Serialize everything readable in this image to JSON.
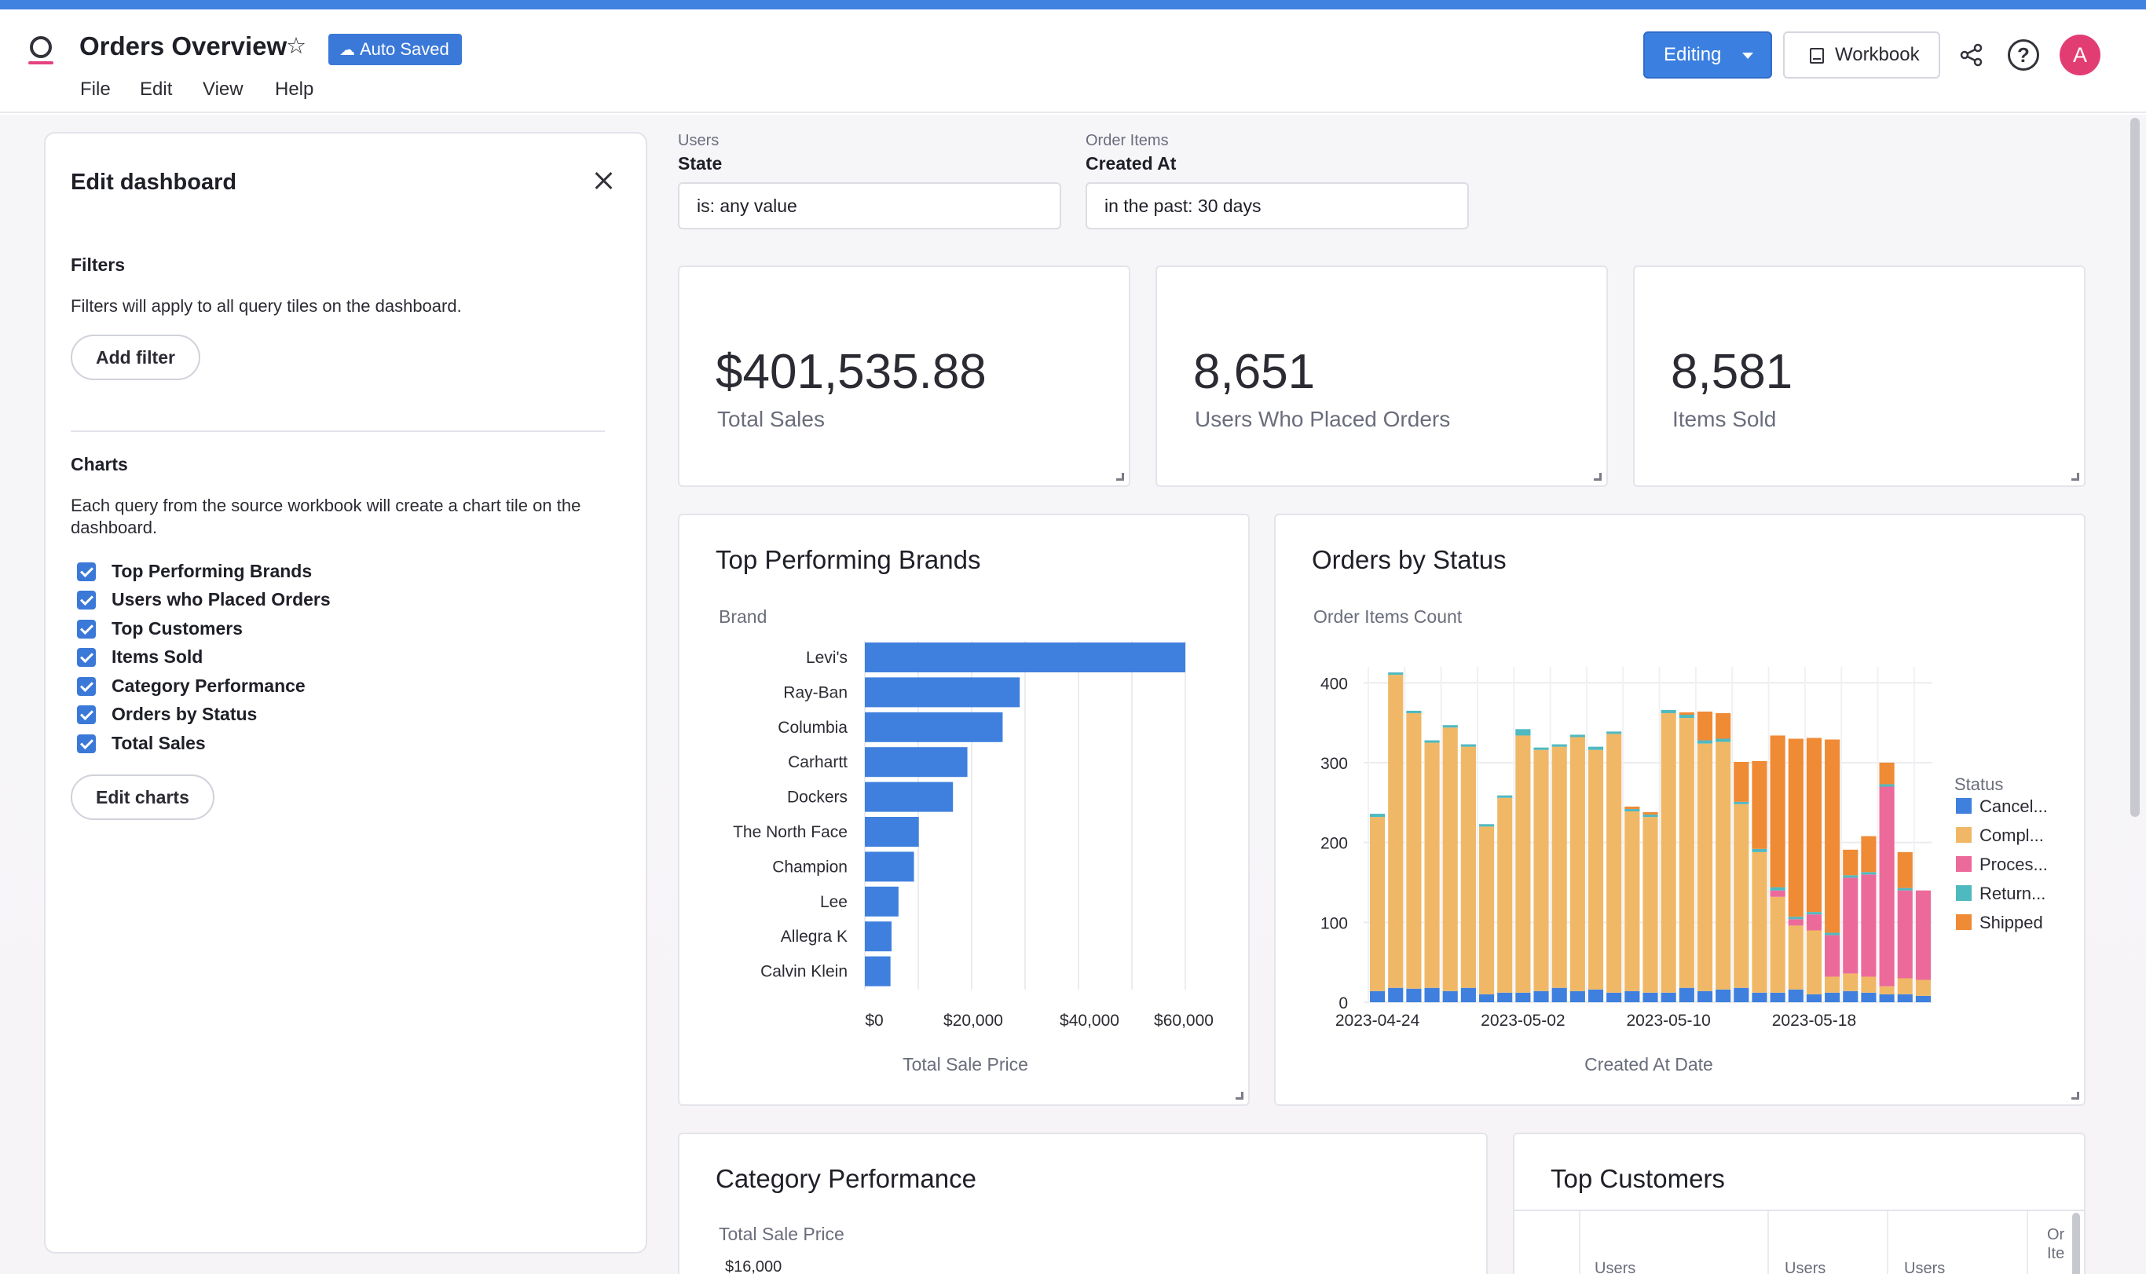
{
  "header": {
    "title": "Orders Overview",
    "auto_saved": "Auto Saved",
    "menu": [
      "File",
      "Edit",
      "View",
      "Help"
    ],
    "editing": "Editing",
    "workbook": "Workbook",
    "help_glyph": "?",
    "avatar_initial": "A",
    "icons": [
      "logo-icon",
      "star-icon",
      "cloud-icon",
      "book-icon",
      "share-icon",
      "help-icon"
    ]
  },
  "panel": {
    "title": "Edit dashboard",
    "filters_heading": "Filters",
    "filters_text": "Filters will apply to all query tiles on the dashboard.",
    "add_filter": "Add filter",
    "charts_heading": "Charts",
    "charts_text": "Each query from the source workbook will create a chart tile on the dashboard.",
    "charts": [
      {
        "label": "Top Performing Brands",
        "checked": true
      },
      {
        "label": "Users who Placed Orders",
        "checked": true
      },
      {
        "label": "Top Customers",
        "checked": true
      },
      {
        "label": "Items Sold",
        "checked": true
      },
      {
        "label": "Category Performance",
        "checked": true
      },
      {
        "label": "Orders by Status",
        "checked": true
      },
      {
        "label": "Total Sales",
        "checked": true
      }
    ],
    "edit_charts": "Edit charts"
  },
  "filters": [
    {
      "source": "Users",
      "name": "State",
      "value": "is: any value"
    },
    {
      "source": "Order Items",
      "name": "Created At",
      "value": "in the past: 30 days"
    }
  ],
  "kpis": [
    {
      "value": "$401,535.88",
      "label": "Total Sales"
    },
    {
      "value": "8,651",
      "label": "Users Who Placed Orders"
    },
    {
      "value": "8,581",
      "label": "Items Sold"
    }
  ],
  "brands_card": {
    "title": "Top Performing Brands",
    "y_title": "Brand",
    "x_title": "Total Sale Price"
  },
  "status_card": {
    "title": "Orders by Status",
    "y_title": "Order Items Count",
    "x_title": "Created At Date",
    "legend_title": "Status"
  },
  "category_card": {
    "title": "Category Performance",
    "y_title": "Total Sale Price",
    "first_tick": "$16,000"
  },
  "customers_card": {
    "title": "Top Customers",
    "headers": [
      "Users",
      "Users",
      "Users",
      "Or Ite"
    ]
  },
  "colors": {
    "accent": "#3b79d8",
    "cancelled": "#3f80de",
    "complete": "#f0b866",
    "processing": "#ec6a9a",
    "returned": "#4fb9c0",
    "shipped": "#ef8a35"
  },
  "chart_data": [
    {
      "type": "bar",
      "orientation": "horizontal",
      "title": "Top Performing Brands",
      "xlabel": "Total Sale Price",
      "ylabel": "Brand",
      "categories": [
        "Levi's",
        "Ray-Ban",
        "Columbia",
        "Carhartt",
        "Dockers",
        "The North Face",
        "Champion",
        "Lee",
        "Allegra K",
        "Calvin Klein"
      ],
      "values": [
        60000,
        29000,
        25800,
        19200,
        16500,
        10100,
        9200,
        6300,
        5000,
        4800
      ],
      "xlim": [
        0,
        60000
      ],
      "x_ticks": [
        "$0",
        "$20,000",
        "$40,000",
        "$60,000"
      ],
      "grid": true
    },
    {
      "type": "bar",
      "stacked": true,
      "title": "Orders by Status",
      "xlabel": "Created At Date",
      "ylabel": "Order Items Count",
      "x": [
        "2023-04-24",
        "2023-04-25",
        "2023-04-26",
        "2023-04-27",
        "2023-04-28",
        "2023-04-29",
        "2023-04-30",
        "2023-05-01",
        "2023-05-02",
        "2023-05-03",
        "2023-05-04",
        "2023-05-05",
        "2023-05-06",
        "2023-05-07",
        "2023-05-08",
        "2023-05-09",
        "2023-05-10",
        "2023-05-11",
        "2023-05-12",
        "2023-05-13",
        "2023-05-14",
        "2023-05-15",
        "2023-05-16",
        "2023-05-17",
        "2023-05-18",
        "2023-05-19",
        "2023-05-20",
        "2023-05-21",
        "2023-05-22",
        "2023-05-23",
        "2023-05-24"
      ],
      "x_ticks": [
        "2023-04-24",
        "2023-05-02",
        "2023-05-10",
        "2023-05-18"
      ],
      "ylim": [
        0,
        420
      ],
      "y_ticks": [
        0,
        100,
        200,
        300,
        400
      ],
      "legend_title": "Status",
      "legend_position": "right",
      "series": [
        {
          "name": "Cancel...",
          "color": "#3f80de",
          "values": [
            14,
            18,
            17,
            18,
            14,
            18,
            10,
            12,
            12,
            14,
            18,
            14,
            16,
            12,
            14,
            12,
            12,
            18,
            14,
            16,
            18,
            12,
            12,
            16,
            10,
            12,
            14,
            12,
            10,
            10,
            8
          ]
        },
        {
          "name": "Compl...",
          "color": "#f0b866",
          "values": [
            218,
            392,
            345,
            307,
            330,
            302,
            210,
            244,
            322,
            302,
            302,
            318,
            300,
            324,
            225,
            220,
            350,
            338,
            310,
            310,
            230,
            176,
            120,
            80,
            80,
            20,
            22,
            20,
            10,
            20,
            20
          ]
        },
        {
          "name": "Proces...",
          "color": "#ec6a9a",
          "values": [
            0,
            0,
            0,
            0,
            0,
            0,
            0,
            0,
            0,
            0,
            0,
            0,
            0,
            0,
            0,
            0,
            0,
            0,
            0,
            0,
            0,
            0,
            8,
            8,
            20,
            52,
            120,
            128,
            250,
            110,
            112
          ]
        },
        {
          "name": "Return...",
          "color": "#4fb9c0",
          "values": [
            4,
            3,
            3,
            3,
            3,
            3,
            3,
            3,
            8,
            3,
            3,
            3,
            4,
            3,
            3,
            3,
            4,
            4,
            4,
            4,
            3,
            4,
            4,
            3,
            3,
            3,
            3,
            3,
            3,
            3,
            0
          ]
        },
        {
          "name": "Shipped",
          "color": "#ef8a35",
          "values": [
            0,
            0,
            0,
            0,
            0,
            0,
            0,
            0,
            0,
            0,
            0,
            0,
            0,
            0,
            3,
            3,
            0,
            3,
            36,
            32,
            50,
            110,
            190,
            223,
            218,
            242,
            32,
            45,
            27,
            45,
            0
          ]
        }
      ]
    }
  ]
}
